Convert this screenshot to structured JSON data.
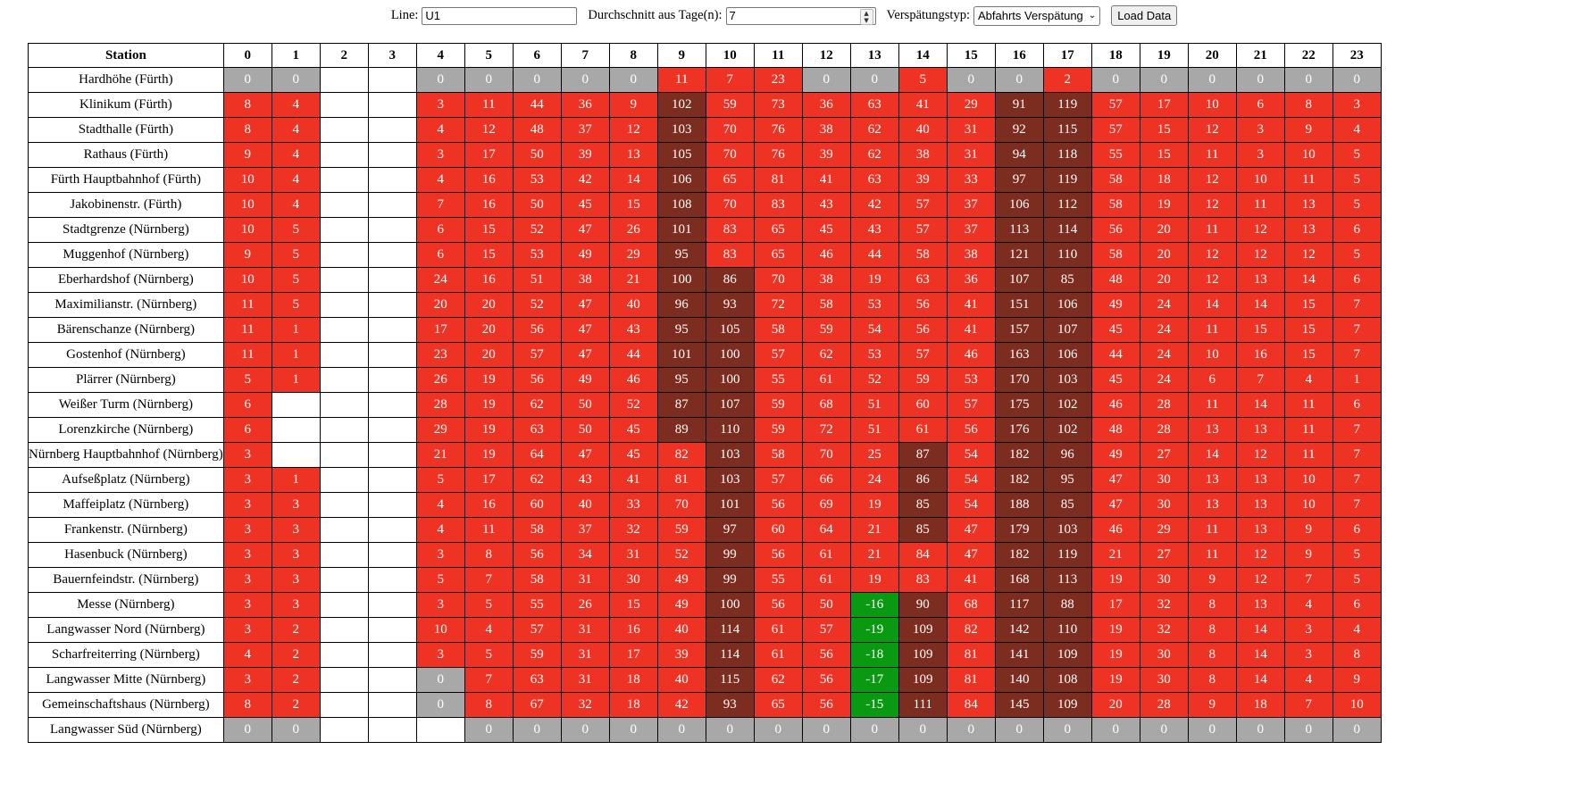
{
  "controls": {
    "line_label": "Line:",
    "line_value": "U1",
    "days_label": "Durchschnitt aus Tage(n):",
    "days_value": "7",
    "type_label": "Verspätungstyp:",
    "type_value": "Abfahrts Verspätung",
    "load_button": "Load Data"
  },
  "colors": {
    "red": "#ee3223",
    "dark_red": "#7d2d20",
    "green": "#0a9a12",
    "gray": "#a8a8a8",
    "empty": "#ffffff"
  },
  "table": {
    "station_header": "Station",
    "hours": [
      "0",
      "1",
      "2",
      "3",
      "4",
      "5",
      "6",
      "7",
      "8",
      "9",
      "10",
      "11",
      "12",
      "13",
      "14",
      "15",
      "16",
      "17",
      "18",
      "19",
      "20",
      "21",
      "22",
      "23"
    ],
    "rows": [
      {
        "station": "Hardhöhe (Fürth)",
        "cells": [
          "0",
          "0",
          "",
          "",
          "0",
          "0",
          "0",
          "0",
          "0",
          "11",
          "7",
          "23",
          "0",
          "0",
          "5",
          "0",
          "0",
          "2",
          "0",
          "0",
          "0",
          "0",
          "0",
          "0"
        ]
      },
      {
        "station": "Klinikum (Fürth)",
        "cells": [
          "8",
          "4",
          "",
          "",
          "3",
          "11",
          "44",
          "36",
          "9",
          "102",
          "59",
          "73",
          "36",
          "63",
          "41",
          "29",
          "91",
          "119",
          "57",
          "17",
          "10",
          "6",
          "8",
          "3"
        ]
      },
      {
        "station": "Stadthalle (Fürth)",
        "cells": [
          "8",
          "4",
          "",
          "",
          "4",
          "12",
          "48",
          "37",
          "12",
          "103",
          "70",
          "76",
          "38",
          "62",
          "40",
          "31",
          "92",
          "115",
          "57",
          "15",
          "12",
          "3",
          "9",
          "4"
        ]
      },
      {
        "station": "Rathaus (Fürth)",
        "cells": [
          "9",
          "4",
          "",
          "",
          "3",
          "17",
          "50",
          "39",
          "13",
          "105",
          "70",
          "76",
          "39",
          "62",
          "38",
          "31",
          "94",
          "118",
          "55",
          "15",
          "11",
          "3",
          "10",
          "5"
        ]
      },
      {
        "station": "Fürth Hauptbahnhof (Fürth)",
        "cells": [
          "10",
          "4",
          "",
          "",
          "4",
          "16",
          "53",
          "42",
          "14",
          "106",
          "65",
          "81",
          "41",
          "63",
          "39",
          "33",
          "97",
          "119",
          "58",
          "18",
          "12",
          "10",
          "11",
          "5"
        ]
      },
      {
        "station": "Jakobinenstr. (Fürth)",
        "cells": [
          "10",
          "4",
          "",
          "",
          "7",
          "16",
          "50",
          "45",
          "15",
          "108",
          "70",
          "83",
          "43",
          "42",
          "57",
          "37",
          "106",
          "112",
          "58",
          "19",
          "12",
          "11",
          "13",
          "5"
        ]
      },
      {
        "station": "Stadtgrenze (Nürnberg)",
        "cells": [
          "10",
          "5",
          "",
          "",
          "6",
          "15",
          "52",
          "47",
          "26",
          "101",
          "83",
          "65",
          "45",
          "43",
          "57",
          "37",
          "113",
          "114",
          "56",
          "20",
          "11",
          "12",
          "13",
          "6"
        ]
      },
      {
        "station": "Muggenhof (Nürnberg)",
        "cells": [
          "9",
          "5",
          "",
          "",
          "6",
          "15",
          "53",
          "49",
          "29",
          "95",
          "83",
          "65",
          "46",
          "44",
          "58",
          "38",
          "121",
          "110",
          "58",
          "20",
          "12",
          "12",
          "12",
          "5"
        ]
      },
      {
        "station": "Eberhardshof (Nürnberg)",
        "cells": [
          "10",
          "5",
          "",
          "",
          "24",
          "16",
          "51",
          "38",
          "21",
          "100",
          "86",
          "70",
          "38",
          "19",
          "63",
          "36",
          "107",
          "85",
          "48",
          "20",
          "12",
          "13",
          "14",
          "6"
        ]
      },
      {
        "station": "Maximilianstr. (Nürnberg)",
        "cells": [
          "11",
          "5",
          "",
          "",
          "20",
          "20",
          "52",
          "47",
          "40",
          "96",
          "93",
          "72",
          "58",
          "53",
          "56",
          "41",
          "151",
          "106",
          "49",
          "24",
          "14",
          "14",
          "15",
          "7"
        ]
      },
      {
        "station": "Bärenschanze (Nürnberg)",
        "cells": [
          "11",
          "1",
          "",
          "",
          "17",
          "20",
          "56",
          "47",
          "43",
          "95",
          "105",
          "58",
          "59",
          "54",
          "56",
          "41",
          "157",
          "107",
          "45",
          "24",
          "11",
          "15",
          "15",
          "7"
        ]
      },
      {
        "station": "Gostenhof (Nürnberg)",
        "cells": [
          "11",
          "1",
          "",
          "",
          "23",
          "20",
          "57",
          "47",
          "44",
          "101",
          "100",
          "57",
          "62",
          "53",
          "57",
          "46",
          "163",
          "106",
          "44",
          "24",
          "10",
          "16",
          "15",
          "7"
        ]
      },
      {
        "station": "Plärrer (Nürnberg)",
        "cells": [
          "5",
          "1",
          "",
          "",
          "26",
          "19",
          "56",
          "49",
          "46",
          "95",
          "100",
          "55",
          "61",
          "52",
          "59",
          "53",
          "170",
          "103",
          "45",
          "24",
          "6",
          "7",
          "4",
          "1"
        ]
      },
      {
        "station": "Weißer Turm (Nürnberg)",
        "cells": [
          "6",
          "",
          "",
          "",
          "28",
          "19",
          "62",
          "50",
          "52",
          "87",
          "107",
          "59",
          "68",
          "51",
          "60",
          "57",
          "175",
          "102",
          "46",
          "28",
          "11",
          "14",
          "11",
          "6"
        ]
      },
      {
        "station": "Lorenzkirche (Nürnberg)",
        "cells": [
          "6",
          "",
          "",
          "",
          "29",
          "19",
          "63",
          "50",
          "45",
          "89",
          "110",
          "59",
          "72",
          "51",
          "61",
          "56",
          "176",
          "102",
          "48",
          "28",
          "13",
          "13",
          "11",
          "7"
        ]
      },
      {
        "station": "Nürnberg Hauptbahnhof (Nürnberg)",
        "cells": [
          "3",
          "",
          "",
          "",
          "21",
          "19",
          "64",
          "47",
          "45",
          "82",
          "103",
          "58",
          "70",
          "25",
          "87",
          "54",
          "182",
          "96",
          "49",
          "27",
          "14",
          "12",
          "11",
          "7"
        ]
      },
      {
        "station": "Aufseßplatz (Nürnberg)",
        "cells": [
          "3",
          "1",
          "",
          "",
          "5",
          "17",
          "62",
          "43",
          "41",
          "81",
          "103",
          "57",
          "66",
          "24",
          "86",
          "54",
          "182",
          "95",
          "47",
          "30",
          "13",
          "13",
          "10",
          "7"
        ]
      },
      {
        "station": "Maffeiplatz (Nürnberg)",
        "cells": [
          "3",
          "3",
          "",
          "",
          "4",
          "16",
          "60",
          "40",
          "33",
          "70",
          "101",
          "56",
          "69",
          "19",
          "85",
          "54",
          "188",
          "85",
          "47",
          "30",
          "13",
          "13",
          "10",
          "7"
        ]
      },
      {
        "station": "Frankenstr. (Nürnberg)",
        "cells": [
          "3",
          "3",
          "",
          "",
          "4",
          "11",
          "58",
          "37",
          "32",
          "59",
          "97",
          "60",
          "64",
          "21",
          "85",
          "47",
          "179",
          "103",
          "46",
          "29",
          "11",
          "13",
          "9",
          "6"
        ]
      },
      {
        "station": "Hasenbuck (Nürnberg)",
        "cells": [
          "3",
          "3",
          "",
          "",
          "3",
          "8",
          "56",
          "34",
          "31",
          "52",
          "99",
          "56",
          "61",
          "21",
          "84",
          "47",
          "182",
          "119",
          "21",
          "27",
          "11",
          "12",
          "9",
          "5"
        ]
      },
      {
        "station": "Bauernfeindstr. (Nürnberg)",
        "cells": [
          "3",
          "3",
          "",
          "",
          "5",
          "7",
          "58",
          "31",
          "30",
          "49",
          "99",
          "55",
          "61",
          "19",
          "83",
          "41",
          "168",
          "113",
          "19",
          "30",
          "9",
          "12",
          "7",
          "5"
        ]
      },
      {
        "station": "Messe (Nürnberg)",
        "cells": [
          "3",
          "3",
          "",
          "",
          "3",
          "5",
          "55",
          "26",
          "15",
          "49",
          "100",
          "56",
          "50",
          "-16",
          "90",
          "68",
          "117",
          "88",
          "17",
          "32",
          "8",
          "13",
          "4",
          "6"
        ]
      },
      {
        "station": "Langwasser Nord (Nürnberg)",
        "cells": [
          "3",
          "2",
          "",
          "",
          "10",
          "4",
          "57",
          "31",
          "16",
          "40",
          "114",
          "61",
          "57",
          "-19",
          "109",
          "82",
          "142",
          "110",
          "19",
          "32",
          "8",
          "14",
          "3",
          "4"
        ]
      },
      {
        "station": "Scharfreiterring (Nürnberg)",
        "cells": [
          "4",
          "2",
          "",
          "",
          "3",
          "5",
          "59",
          "31",
          "17",
          "39",
          "114",
          "61",
          "56",
          "-18",
          "109",
          "81",
          "141",
          "109",
          "19",
          "30",
          "8",
          "14",
          "3",
          "8"
        ]
      },
      {
        "station": "Langwasser Mitte (Nürnberg)",
        "cells": [
          "3",
          "2",
          "",
          "",
          "0",
          "7",
          "63",
          "31",
          "18",
          "40",
          "115",
          "62",
          "56",
          "-17",
          "109",
          "81",
          "140",
          "108",
          "19",
          "30",
          "8",
          "14",
          "4",
          "9"
        ]
      },
      {
        "station": "Gemeinschaftshaus (Nürnberg)",
        "cells": [
          "8",
          "2",
          "",
          "",
          "0",
          "8",
          "67",
          "32",
          "18",
          "42",
          "93",
          "65",
          "56",
          "-15",
          "111",
          "84",
          "145",
          "109",
          "20",
          "28",
          "9",
          "18",
          "7",
          "10"
        ]
      },
      {
        "station": "Langwasser Süd (Nürnberg)",
        "cells": [
          "0",
          "0",
          "",
          "",
          "",
          "0",
          "0",
          "0",
          "0",
          "0",
          "0",
          "0",
          "0",
          "0",
          "0",
          "0",
          "0",
          "0",
          "0",
          "0",
          "0",
          "0",
          "0",
          "0"
        ]
      }
    ]
  }
}
